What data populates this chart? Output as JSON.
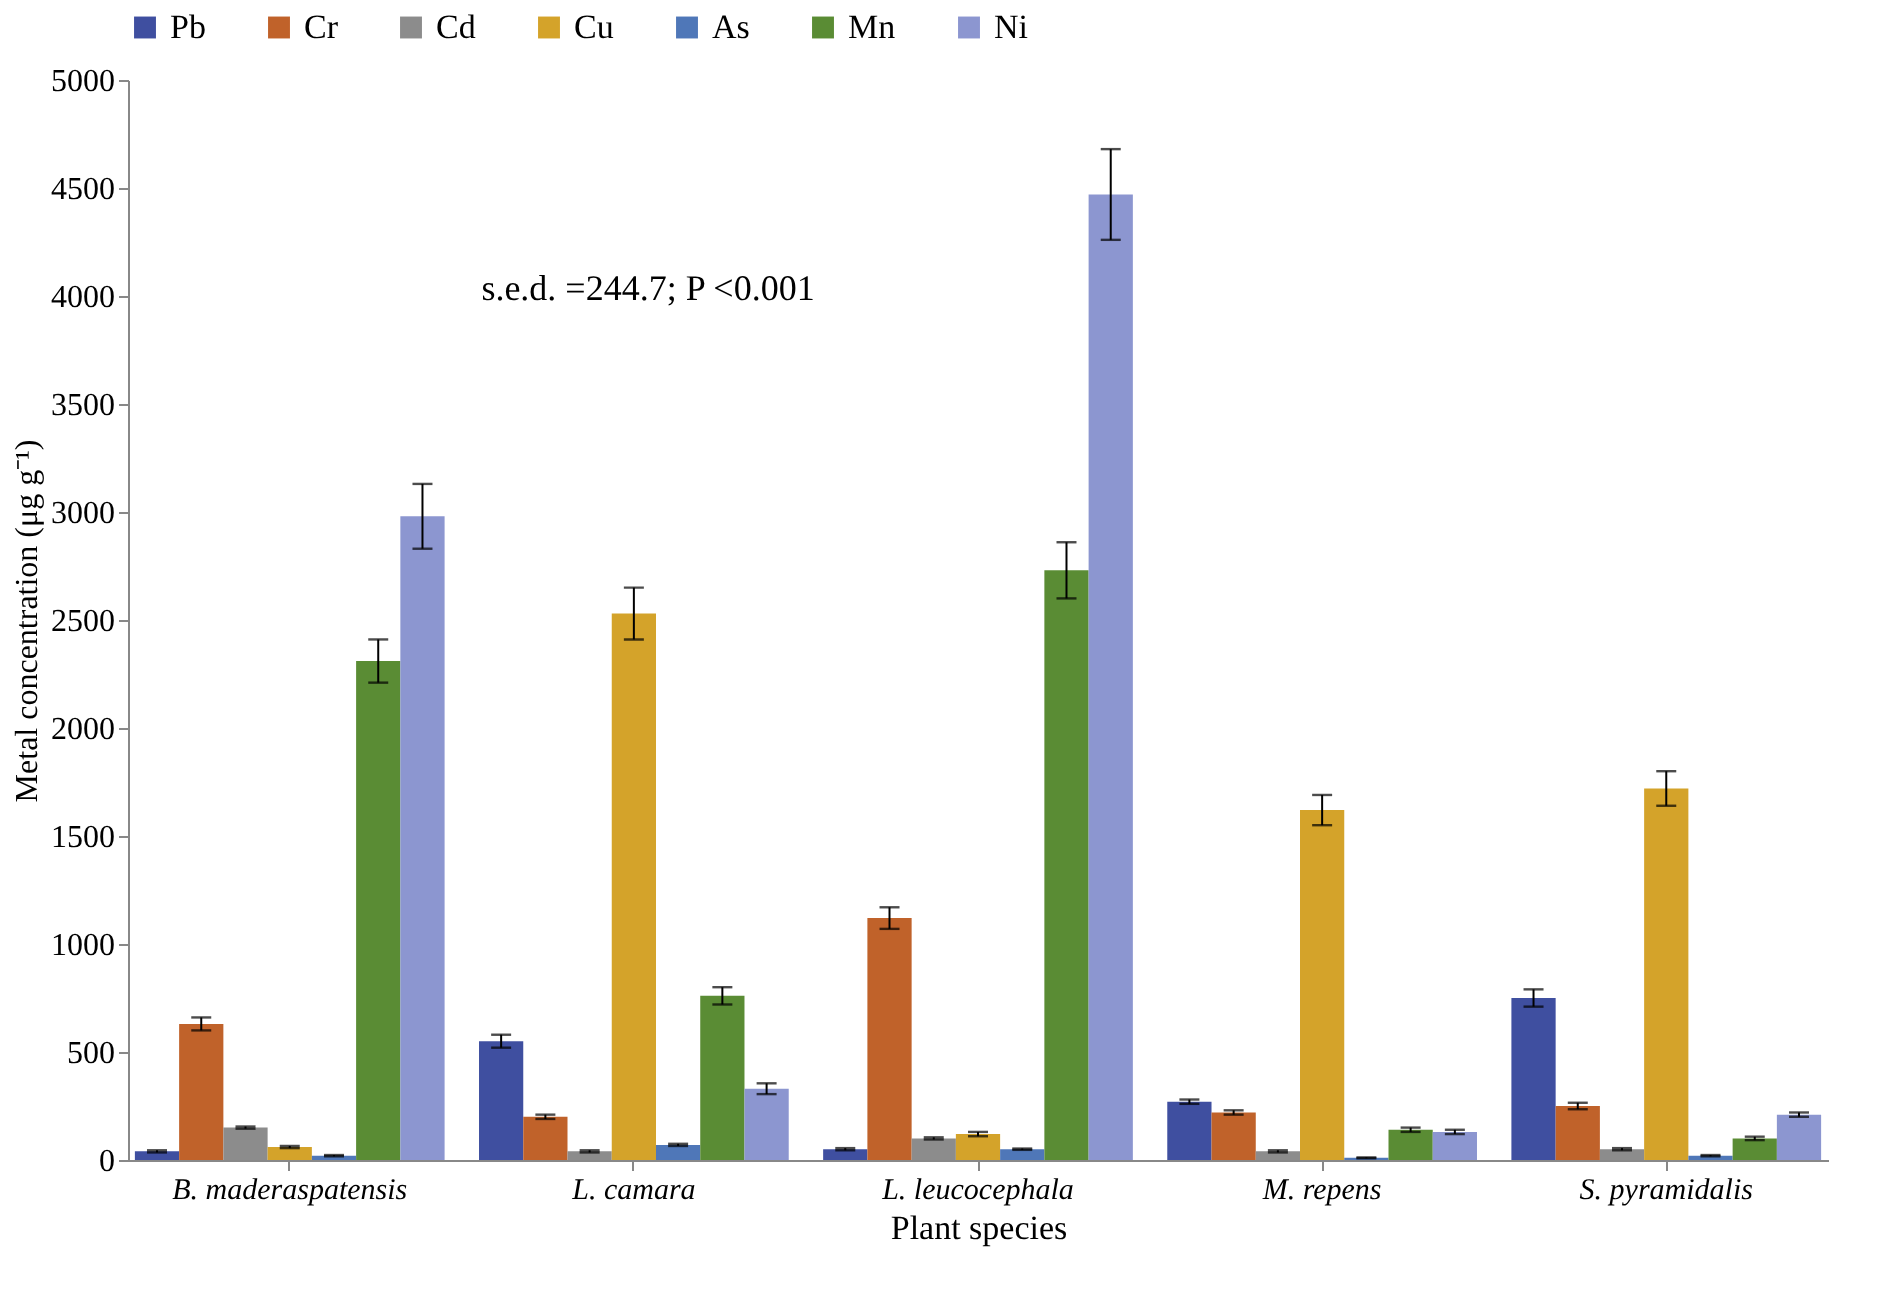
{
  "chart_data": {
    "type": "bar",
    "xlabel": "Plant species",
    "ylabel": "Metal concentration (μg g⁻¹)",
    "categories": [
      "B. maderaspatensis",
      "L. camara",
      "L. leucocephala",
      "M. repens",
      "S. pyramidalis"
    ],
    "series": [
      {
        "name": "Pb",
        "color": "#3f4fa0",
        "values": [
          40,
          550,
          50,
          270,
          750
        ],
        "errors": [
          5,
          30,
          5,
          10,
          40
        ]
      },
      {
        "name": "Cr",
        "color": "#c0622a",
        "values": [
          630,
          200,
          1120,
          220,
          250
        ],
        "errors": [
          30,
          10,
          50,
          10,
          15
        ]
      },
      {
        "name": "Cd",
        "color": "#8c8c8c",
        "values": [
          150,
          40,
          100,
          40,
          50
        ],
        "errors": [
          5,
          5,
          5,
          5,
          5
        ]
      },
      {
        "name": "Cu",
        "color": "#d4a32a",
        "values": [
          60,
          2530,
          120,
          1620,
          1720
        ],
        "errors": [
          5,
          120,
          10,
          70,
          80
        ]
      },
      {
        "name": "As",
        "color": "#4f77b8",
        "values": [
          20,
          70,
          50,
          10,
          20
        ],
        "errors": [
          3,
          5,
          3,
          2,
          3
        ]
      },
      {
        "name": "Mn",
        "color": "#5a8c34",
        "values": [
          2310,
          760,
          2730,
          140,
          100
        ],
        "errors": [
          100,
          40,
          130,
          10,
          8
        ]
      },
      {
        "name": "Ni",
        "color": "#8c96d0",
        "values": [
          2980,
          330,
          4470,
          130,
          210
        ],
        "errors": [
          150,
          25,
          210,
          10,
          10
        ]
      }
    ],
    "ylim": [
      0,
      5000
    ],
    "yticks": [
      0,
      500,
      1000,
      1500,
      2000,
      2500,
      3000,
      3500,
      4000,
      4500,
      5000
    ],
    "grid": false,
    "legend": "top",
    "annotations": [
      "s.e.d. =244.7; P <0.001"
    ]
  }
}
